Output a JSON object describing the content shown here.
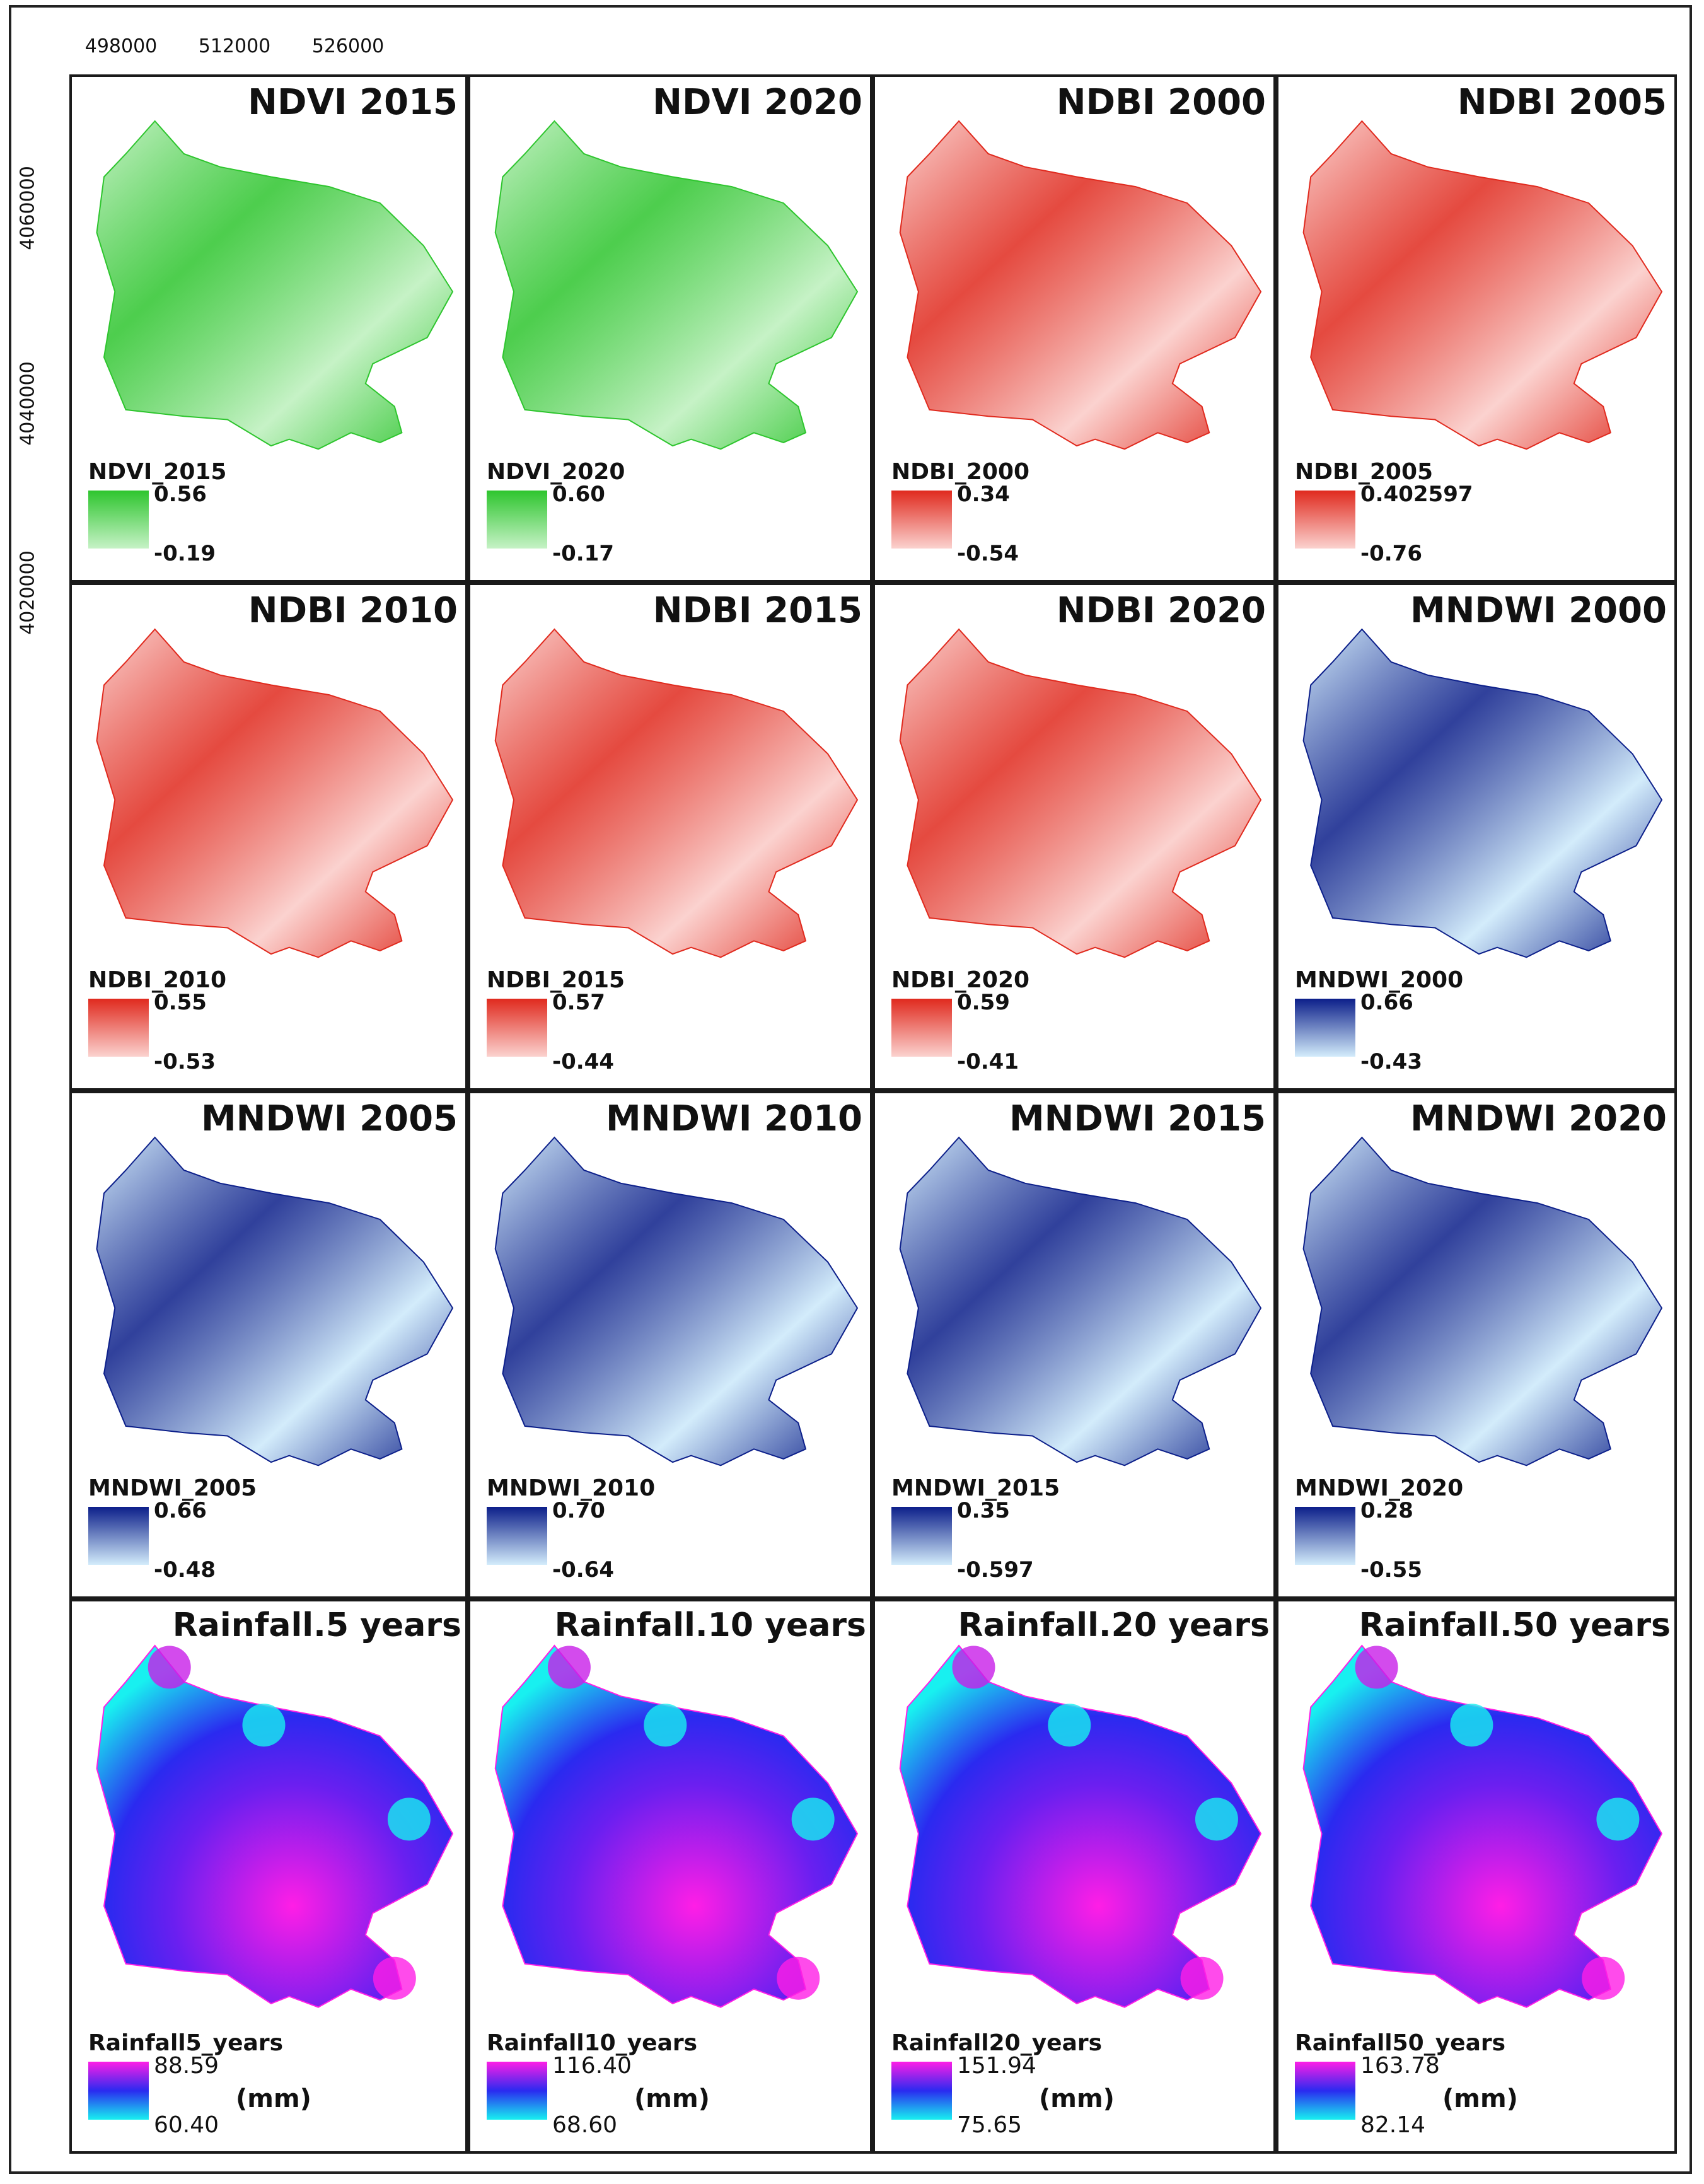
{
  "axes": {
    "x_ticks": [
      "498000",
      "512000",
      "526000"
    ],
    "y_ticks": [
      "4060000",
      "4040000",
      "4020000"
    ]
  },
  "panels": [
    {
      "title": "NDVI 2015",
      "legend_title": "NDVI_2015",
      "max": "0.56",
      "min": "-0.19",
      "colors": [
        "#2ec52e",
        "#c6f2c6"
      ],
      "kind": "ndvi"
    },
    {
      "title": "NDVI 2020",
      "legend_title": "NDVI_2020",
      "max": "0.60",
      "min": "-0.17",
      "colors": [
        "#2ec52e",
        "#c6f2c6"
      ],
      "kind": "ndvi"
    },
    {
      "title": "NDBI 2000",
      "legend_title": "NDBI_2000",
      "max": "0.34",
      "min": "-0.54",
      "colors": [
        "#e02a1e",
        "#fbd2cf"
      ],
      "kind": "ndbi"
    },
    {
      "title": "NDBI 2005",
      "legend_title": "NDBI_2005",
      "max": "0.402597",
      "min": "-0.76",
      "colors": [
        "#e02a1e",
        "#fbd2cf"
      ],
      "kind": "ndbi"
    },
    {
      "title": "NDBI 2010",
      "legend_title": "NDBI_2010",
      "max": "0.55",
      "min": "-0.53",
      "colors": [
        "#e02a1e",
        "#fbd2cf"
      ],
      "kind": "ndbi"
    },
    {
      "title": "NDBI 2015",
      "legend_title": "NDBI_2015",
      "max": "0.57",
      "min": "-0.44",
      "colors": [
        "#e02a1e",
        "#fbd2cf"
      ],
      "kind": "ndbi"
    },
    {
      "title": "NDBI 2020",
      "legend_title": "NDBI_2020",
      "max": "0.59",
      "min": "-0.41",
      "colors": [
        "#e02a1e",
        "#fbd2cf"
      ],
      "kind": "ndbi"
    },
    {
      "title": "MNDWI 2000",
      "legend_title": "MNDWI_2000",
      "max": "0.66",
      "min": "-0.43",
      "colors": [
        "#0c1f8a",
        "#d3ecfb"
      ],
      "kind": "mndwi"
    },
    {
      "title": "MNDWI 2005",
      "legend_title": "MNDWI_2005",
      "max": "0.66",
      "min": "-0.48",
      "colors": [
        "#0c1f8a",
        "#d3ecfb"
      ],
      "kind": "mndwi"
    },
    {
      "title": "MNDWI 2010",
      "legend_title": "MNDWI_2010",
      "max": "0.70",
      "min": "-0.64",
      "colors": [
        "#0c1f8a",
        "#d3ecfb"
      ],
      "kind": "mndwi"
    },
    {
      "title": "MNDWI 2015",
      "legend_title": "MNDWI_2015",
      "max": "0.35",
      "min": "-0.597",
      "colors": [
        "#0c1f8a",
        "#d3ecfb"
      ],
      "kind": "mndwi"
    },
    {
      "title": "MNDWI 2020",
      "legend_title": "MNDWI_2020",
      "max": "0.28",
      "min": "-0.55",
      "colors": [
        "#0c1f8a",
        "#d3ecfb"
      ],
      "kind": "mndwi"
    },
    {
      "title": "Rainfall.5 years",
      "legend_title": "Rainfall5_years",
      "max": "88.59",
      "min": "60.40",
      "unit": "(mm)",
      "colors": [
        "#ff1ee6",
        "#2a2af0",
        "#18f0f0"
      ],
      "kind": "rain"
    },
    {
      "title": "Rainfall.10 years",
      "legend_title": "Rainfall10_years",
      "max": "116.40",
      "min": "68.60",
      "unit": "(mm)",
      "colors": [
        "#ff1ee6",
        "#2a2af0",
        "#18f0f0"
      ],
      "kind": "rain"
    },
    {
      "title": "Rainfall.20 years",
      "legend_title": "Rainfall20_years",
      "max": "151.94",
      "min": "75.65",
      "unit": "(mm)",
      "colors": [
        "#ff1ee6",
        "#2a2af0",
        "#18f0f0"
      ],
      "kind": "rain"
    },
    {
      "title": "Rainfall.50 years",
      "legend_title": "Rainfall50_years",
      "max": "163.78",
      "min": "82.14",
      "unit": "(mm)",
      "colors": [
        "#ff1ee6",
        "#2a2af0",
        "#18f0f0"
      ],
      "kind": "rain"
    }
  ]
}
